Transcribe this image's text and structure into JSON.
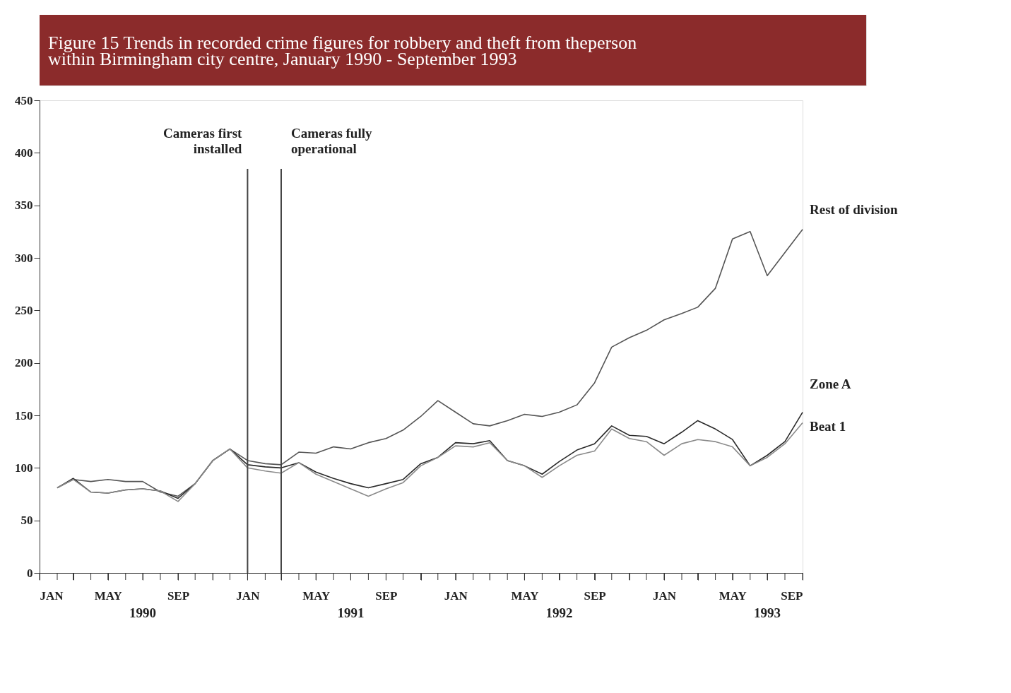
{
  "chart_data": {
    "type": "line",
    "title": "Figure 15  Trends in recorded crime figures for robbery and theft from theperson\nwithin Birmingham city centre, January 1990 - September 1993",
    "x": [
      "1990-02",
      "1990-03",
      "1990-04",
      "1990-05",
      "1990-06",
      "1990-07",
      "1990-08",
      "1990-09",
      "1990-10",
      "1990-11",
      "1990-12",
      "1991-01",
      "1991-02",
      "1991-03",
      "1991-04",
      "1991-05",
      "1991-06",
      "1991-07",
      "1991-08",
      "1991-09",
      "1991-10",
      "1991-11",
      "1991-12",
      "1992-01",
      "1992-02",
      "1992-03",
      "1992-04",
      "1992-05",
      "1992-06",
      "1992-07",
      "1992-08",
      "1992-09",
      "1992-10",
      "1992-11",
      "1992-12",
      "1993-01",
      "1993-02",
      "1993-03",
      "1993-04",
      "1993-05",
      "1993-06",
      "1993-07",
      "1993-08",
      "1993-09"
    ],
    "series": [
      {
        "name": "Rest of division",
        "color": "#555555",
        "values": [
          81,
          89,
          87,
          89,
          87,
          87,
          77,
          73,
          85,
          107,
          118,
          107,
          104,
          103,
          115,
          114,
          120,
          118,
          124,
          128,
          136,
          149,
          164,
          153,
          142,
          140,
          145,
          151,
          149,
          153,
          160,
          181,
          215,
          224,
          231,
          241,
          247,
          253,
          271,
          318,
          325,
          283,
          305,
          327
        ]
      },
      {
        "name": "Zone A",
        "color": "#2a2a2a",
        "values": [
          81,
          90,
          77,
          76,
          79,
          80,
          78,
          71,
          85,
          107,
          118,
          103,
          101,
          100,
          105,
          96,
          90,
          85,
          81,
          85,
          89,
          104,
          110,
          124,
          123,
          126,
          107,
          102,
          94,
          106,
          117,
          123,
          140,
          131,
          130,
          123,
          134,
          145,
          137,
          127,
          102,
          112,
          125,
          153
        ]
      },
      {
        "name": "Beat 1",
        "color": "#8a8a8a",
        "values": [
          81,
          89,
          77,
          76,
          79,
          80,
          78,
          68,
          85,
          107,
          118,
          100,
          97,
          95,
          105,
          94,
          87,
          80,
          73,
          80,
          86,
          102,
          110,
          121,
          120,
          124,
          107,
          102,
          91,
          102,
          112,
          116,
          137,
          128,
          125,
          112,
          123,
          127,
          125,
          120,
          102,
          110,
          123,
          143
        ]
      }
    ],
    "xlim": [
      "1990-01",
      "1993-09"
    ],
    "xticks": [
      {
        "value": "1990-01",
        "label": "JAN"
      },
      {
        "value": "1990-02",
        "label": null
      },
      {
        "value": "1990-03",
        "label": null
      },
      {
        "value": "1990-04",
        "label": null
      },
      {
        "value": "1990-05",
        "label": "MAY"
      },
      {
        "value": "1990-06",
        "label": null
      },
      {
        "value": "1990-07",
        "label": null
      },
      {
        "value": "1990-08",
        "label": null
      },
      {
        "value": "1990-09",
        "label": "SEP"
      },
      {
        "value": "1990-10",
        "label": null
      },
      {
        "value": "1990-11",
        "label": null
      },
      {
        "value": "1990-12",
        "label": null
      },
      {
        "value": "1991-01",
        "label": "JAN"
      },
      {
        "value": "1991-02",
        "label": null
      },
      {
        "value": "1991-03",
        "label": null
      },
      {
        "value": "1991-04",
        "label": null
      },
      {
        "value": "1991-05",
        "label": "MAY"
      },
      {
        "value": "1991-06",
        "label": null
      },
      {
        "value": "1991-07",
        "label": null
      },
      {
        "value": "1991-08",
        "label": null
      },
      {
        "value": "1991-09",
        "label": "SEP"
      },
      {
        "value": "1991-10",
        "label": null
      },
      {
        "value": "1991-11",
        "label": null
      },
      {
        "value": "1991-12",
        "label": null
      },
      {
        "value": "1992-01",
        "label": "JAN"
      },
      {
        "value": "1992-02",
        "label": null
      },
      {
        "value": "1992-03",
        "label": null
      },
      {
        "value": "1992-04",
        "label": null
      },
      {
        "value": "1992-05",
        "label": "MAY"
      },
      {
        "value": "1992-06",
        "label": null
      },
      {
        "value": "1992-07",
        "label": null
      },
      {
        "value": "1992-08",
        "label": null
      },
      {
        "value": "1992-09",
        "label": "SEP"
      },
      {
        "value": "1992-10",
        "label": null
      },
      {
        "value": "1992-11",
        "label": null
      },
      {
        "value": "1992-12",
        "label": null
      },
      {
        "value": "1993-01",
        "label": "JAN"
      },
      {
        "value": "1993-02",
        "label": null
      },
      {
        "value": "1993-03",
        "label": null
      },
      {
        "value": "1993-04",
        "label": null
      },
      {
        "value": "1993-05",
        "label": "MAY"
      },
      {
        "value": "1993-06",
        "label": null
      },
      {
        "value": "1993-07",
        "label": null
      },
      {
        "value": "1993-08",
        "label": null
      },
      {
        "value": "1993-09",
        "label": "SEP"
      }
    ],
    "ylim": [
      0,
      450
    ],
    "yticks": [
      0,
      50,
      100,
      150,
      200,
      250,
      300,
      350,
      400,
      450
    ],
    "grid": false,
    "ref_lines": [
      {
        "axis": "x",
        "value": "1991-01",
        "label": "Cameras first\ninstalled",
        "color": "#444444"
      },
      {
        "axis": "x",
        "value": "1991-03",
        "label": "Cameras fully\noperational",
        "color": "#444444"
      }
    ],
    "annotations": [
      "1990",
      "1991",
      "1992",
      "1993"
    ]
  }
}
